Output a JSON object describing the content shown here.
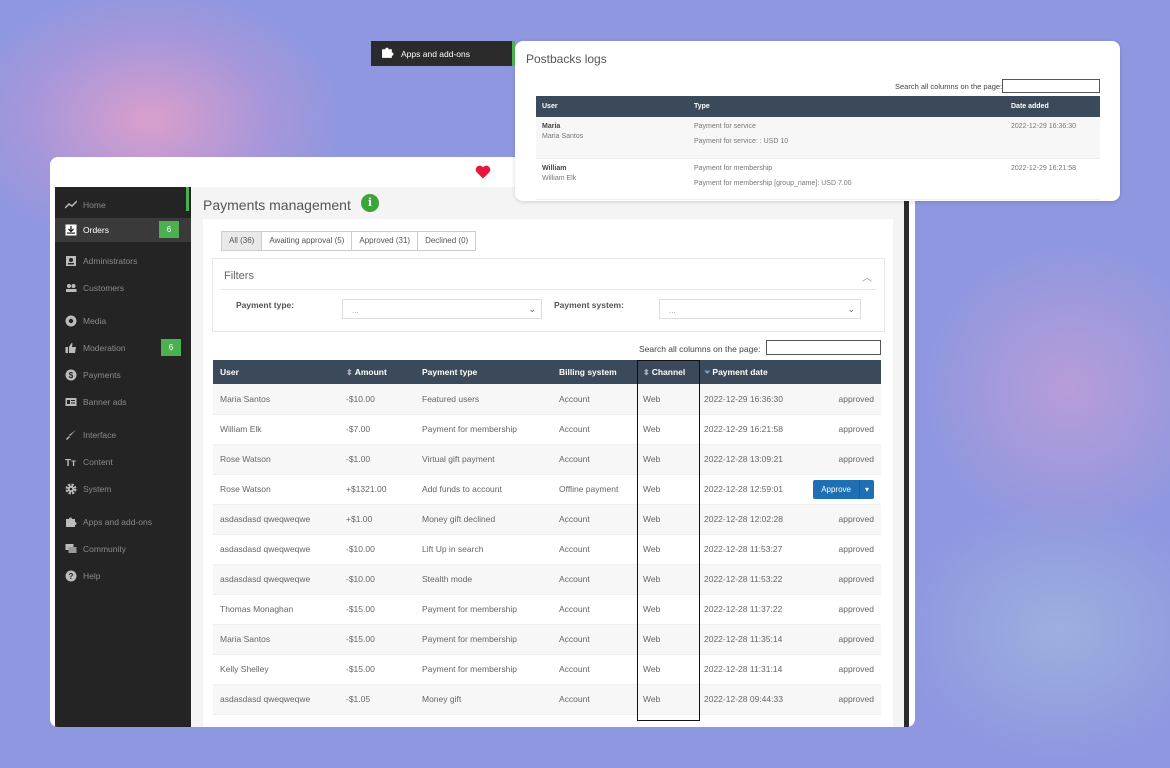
{
  "colors": {
    "sidebar": "#242424",
    "accent_green": "#4caf50",
    "table_header": "#3b4a5b",
    "approve_blue": "#1f6fb5",
    "heart": "#e8163c"
  },
  "sidebar": {
    "items": [
      {
        "label": "Home",
        "icon": "chart-line-icon"
      },
      {
        "label": "Orders",
        "icon": "download-box-icon",
        "badge": "6",
        "active": true
      },
      {
        "label": "Administrators",
        "icon": "id-card-icon"
      },
      {
        "label": "Customers",
        "icon": "users-icon"
      },
      {
        "label": "Media",
        "icon": "camera-aperture-icon"
      },
      {
        "label": "Moderation",
        "icon": "thumbs-up-icon",
        "badge": "6"
      },
      {
        "label": "Payments",
        "icon": "dollar-circle-icon"
      },
      {
        "label": "Banner ads",
        "icon": "banner-icon"
      },
      {
        "label": "Interface",
        "icon": "brush-icon"
      },
      {
        "label": "Content",
        "icon": "text-tt-icon"
      },
      {
        "label": "System",
        "icon": "gear-icon"
      },
      {
        "label": "Apps and add-ons",
        "icon": "puzzle-icon"
      },
      {
        "label": "Community",
        "icon": "chat-icon"
      },
      {
        "label": "Help",
        "icon": "help-circle-icon"
      }
    ]
  },
  "main": {
    "title": "Payments management",
    "info_glyph": "i",
    "tabs": [
      {
        "label": "All (36)",
        "active": true
      },
      {
        "label": "Awaiting approval (5)"
      },
      {
        "label": "Approved (31)"
      },
      {
        "label": "Declined (0)"
      }
    ],
    "filters": {
      "title": "Filters",
      "payment_type_label": "Payment type:",
      "payment_type_value": "...",
      "payment_system_label": "Payment system:",
      "payment_system_value": "..."
    },
    "search_label": "Search all columns on the page:",
    "table": {
      "headers": [
        "User",
        "Amount",
        "Payment type",
        "Billing system",
        "Channel",
        "Payment date",
        ""
      ],
      "rows": [
        [
          "Maria Santos",
          "-$10.00",
          "Featured users",
          "Account",
          "Web",
          "2022-12-29 16:36:30",
          "approved"
        ],
        [
          "William Elk",
          "-$7.00",
          "Payment for membership",
          "Account",
          "Web",
          "2022-12-29 16:21:58",
          "approved"
        ],
        [
          "Rose Watson",
          "-$1.00",
          "Virtual gift payment",
          "Account",
          "Web",
          "2022-12-28 13:09:21",
          "approved"
        ],
        [
          "Rose Watson",
          "+$1321.00",
          "Add funds to account",
          "Offline payment",
          "Web",
          "2022-12-28 12:59:01",
          "Approve"
        ],
        [
          "asdasdasd qweqweqwe",
          "+$1.00",
          "Money gift declined",
          "Account",
          "Web",
          "2022-12-28 12:02:28",
          "approved"
        ],
        [
          "asdasdasd qweqweqwe",
          "-$10.00",
          "Lift Up in search",
          "Account",
          "Web",
          "2022-12-28 11:53:27",
          "approved"
        ],
        [
          "asdasdasd qweqweqwe",
          "-$10.00",
          "Stealth mode",
          "Account",
          "Web",
          "2022-12-28 11:53:22",
          "approved"
        ],
        [
          "Thomas Monaghan",
          "-$15.00",
          "Payment for membership",
          "Account",
          "Web",
          "2022-12-28 11:37:22",
          "approved"
        ],
        [
          "Maria Santos",
          "-$15.00",
          "Payment for membership",
          "Account",
          "Web",
          "2022-12-28 11:35:14",
          "approved"
        ],
        [
          "Kelly Shelley",
          "-$15.00",
          "Payment for membership",
          "Account",
          "Web",
          "2022-12-28 11:31:14",
          "approved"
        ],
        [
          "asdasdasd qweqweqwe",
          "-$1.05",
          "Money gift",
          "Account",
          "Web",
          "2022-12-28 09:44:33",
          "approved"
        ]
      ]
    }
  },
  "tooltip": {
    "label": "Apps and add-ons"
  },
  "postbacks": {
    "title": "Postbacks logs",
    "search_label": "Search all columns on the page:",
    "headers": [
      "User",
      "Type",
      "Date added"
    ],
    "rows": [
      {
        "user": "Maria",
        "name": "Maria Santos",
        "type": "Payment for service",
        "detail": "Payment for service: : USD 10",
        "date": "2022-12-29 16:36:30"
      },
      {
        "user": "William",
        "name": "William Elk",
        "type": "Payment for membership",
        "detail": "Payment for membership [group_name]: USD 7.00",
        "date": "2022-12-29 16:21:58"
      }
    ]
  }
}
